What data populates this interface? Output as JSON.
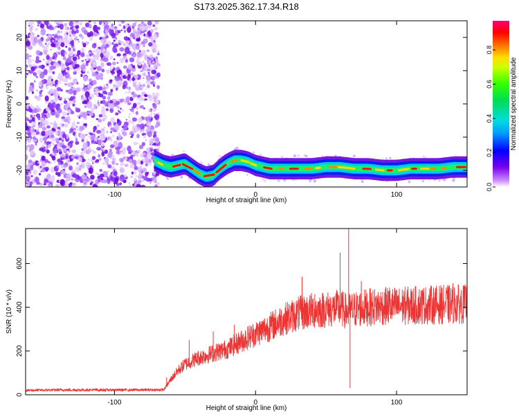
{
  "title": "S173.2025.362.17.34.R18",
  "chart_data": [
    {
      "type": "heatmap",
      "xlabel": "Height of straight line (km)",
      "ylabel": "Frequency (Hz)",
      "xlim": [
        -163,
        150
      ],
      "ylim": [
        -25,
        25
      ],
      "xticks": [
        -100,
        0,
        100
      ],
      "yticks": [
        -20,
        -10,
        0,
        10,
        20
      ],
      "colorbar": {
        "label": "Normalized spectral amplitude",
        "range": [
          0,
          0.97
        ],
        "ticks": [
          0.0,
          0.2,
          0.4,
          0.6,
          0.8
        ]
      },
      "noise_region": {
        "x": [
          -163,
          -70
        ],
        "y": [
          -25,
          25
        ]
      },
      "trace": {
        "x": [
          -72,
          -65,
          -60,
          -55,
          -50,
          -45,
          -40,
          -35,
          -30,
          -25,
          -20,
          -15,
          -10,
          -5,
          0,
          10,
          20,
          30,
          40,
          50,
          60,
          70,
          80,
          90,
          100,
          110,
          120,
          130,
          140,
          150
        ],
        "y": [
          -17,
          -18.5,
          -19,
          -18.5,
          -18,
          -19.5,
          -21,
          -22,
          -21.5,
          -19.5,
          -18,
          -17,
          -17,
          -17.5,
          -18.5,
          -19.5,
          -19.5,
          -19.5,
          -19.5,
          -19,
          -19,
          -19.5,
          -19.5,
          -20,
          -20,
          -19.5,
          -19.5,
          -19.5,
          -19,
          -19
        ]
      }
    },
    {
      "type": "line",
      "xlabel": "Height of straight line (km)",
      "ylabel": "SNR (10 * v/v)",
      "xlim": [
        -163,
        150
      ],
      "ylim": [
        0,
        760
      ],
      "xticks": [
        -100,
        0,
        100
      ],
      "yticks": [
        0,
        200,
        400,
        600
      ],
      "color": "#ee3333",
      "envelope": {
        "x": [
          -163,
          -140,
          -120,
          -100,
          -80,
          -65,
          -60,
          -55,
          -50,
          -40,
          -30,
          -20,
          -10,
          0,
          10,
          20,
          30,
          40,
          50,
          60,
          65,
          70,
          80,
          90,
          100,
          120,
          150
        ],
        "y": [
          20,
          22,
          22,
          22,
          22,
          23,
          70,
          110,
          140,
          170,
          190,
          210,
          245,
          280,
          310,
          345,
          370,
          385,
          390,
          395,
          380,
          390,
          400,
          405,
          405,
          410,
          415
        ]
      },
      "spikes": [
        {
          "x": -63,
          "y": 80
        },
        {
          "x": -47,
          "y": 250
        },
        {
          "x": -30,
          "y": 290
        },
        {
          "x": -15,
          "y": 320
        },
        {
          "x": 10,
          "y": 360
        },
        {
          "x": 33,
          "y": 540
        },
        {
          "x": 42,
          "y": 460
        },
        {
          "x": 60,
          "y": 650
        },
        {
          "x": 66,
          "y": 760
        },
        {
          "x": 67,
          "y": 30
        },
        {
          "x": 75,
          "y": 520
        },
        {
          "x": 95,
          "y": 490
        },
        {
          "x": 140,
          "y": 510
        }
      ]
    }
  ]
}
